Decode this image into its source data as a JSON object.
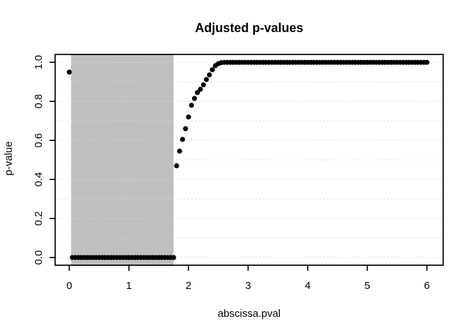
{
  "chart_data": {
    "type": "scatter",
    "title": "Adjusted p-values",
    "xlabel": "abscissa.pval",
    "ylabel": "p-value",
    "xlim": [
      -0.24,
      6.24
    ],
    "ylim": [
      -0.04,
      1.04
    ],
    "x_ticks": [
      0,
      1,
      2,
      3,
      4,
      5,
      6
    ],
    "x_tick_labels": [
      "0",
      "1",
      "2",
      "3",
      "4",
      "5",
      "6"
    ],
    "y_ticks": [
      0,
      0.2,
      0.4,
      0.6,
      0.8,
      1
    ],
    "y_tick_labels": [
      "0.0",
      "0.2",
      "0.4",
      "0.6",
      "0.8",
      "1.0"
    ],
    "gridlines_y": [
      0,
      0.1,
      0.2,
      0.3,
      0.4,
      0.5,
      0.6,
      0.7,
      0.8,
      0.9,
      1.0
    ],
    "gridline_style": "dotted",
    "grid": "horizontal-only",
    "legend": "none",
    "background": "#ffffff",
    "gridline_color": "#d9d9d9",
    "axis_color": "#000000",
    "point_color": "#000000",
    "point_shape": "filled-circle",
    "shaded_region": {
      "x_from": 0.03,
      "x_to": 1.75,
      "color": "#bfbfbf",
      "spans_full_height": true
    },
    "points": [
      [
        0,
        0.95
      ],
      [
        0.05,
        0
      ],
      [
        0.1,
        0
      ],
      [
        0.15,
        0
      ],
      [
        0.2,
        0
      ],
      [
        0.25,
        0
      ],
      [
        0.3,
        0
      ],
      [
        0.35,
        0
      ],
      [
        0.4,
        0
      ],
      [
        0.45,
        0
      ],
      [
        0.5,
        0
      ],
      [
        0.55,
        0
      ],
      [
        0.6,
        0
      ],
      [
        0.65,
        0
      ],
      [
        0.7,
        0
      ],
      [
        0.75,
        0
      ],
      [
        0.8,
        0
      ],
      [
        0.85,
        0
      ],
      [
        0.9,
        0
      ],
      [
        0.95,
        0
      ],
      [
        1,
        0
      ],
      [
        1.05,
        0
      ],
      [
        1.1,
        0
      ],
      [
        1.15,
        0
      ],
      [
        1.2,
        0
      ],
      [
        1.25,
        0
      ],
      [
        1.3,
        0
      ],
      [
        1.35,
        0
      ],
      [
        1.4,
        0
      ],
      [
        1.45,
        0
      ],
      [
        1.5,
        0
      ],
      [
        1.55,
        0
      ],
      [
        1.6,
        0
      ],
      [
        1.65,
        0
      ],
      [
        1.7,
        0
      ],
      [
        1.75,
        0
      ],
      [
        1.8,
        0.47
      ],
      [
        1.85,
        0.545
      ],
      [
        1.9,
        0.605
      ],
      [
        1.95,
        0.66
      ],
      [
        2,
        0.72
      ],
      [
        2.05,
        0.78
      ],
      [
        2.1,
        0.815
      ],
      [
        2.15,
        0.845
      ],
      [
        2.2,
        0.862
      ],
      [
        2.25,
        0.885
      ],
      [
        2.3,
        0.912
      ],
      [
        2.35,
        0.936
      ],
      [
        2.4,
        0.962
      ],
      [
        2.45,
        0.983
      ],
      [
        2.5,
        0.993
      ],
      [
        2.55,
        0.998
      ],
      [
        2.6,
        1
      ],
      [
        2.65,
        1
      ],
      [
        2.7,
        1
      ],
      [
        2.75,
        1
      ],
      [
        2.8,
        1
      ],
      [
        2.85,
        1
      ],
      [
        2.9,
        1
      ],
      [
        2.95,
        1
      ],
      [
        3,
        1
      ],
      [
        3.05,
        1
      ],
      [
        3.1,
        1
      ],
      [
        3.15,
        1
      ],
      [
        3.2,
        1
      ],
      [
        3.25,
        1
      ],
      [
        3.3,
        1
      ],
      [
        3.35,
        1
      ],
      [
        3.4,
        1
      ],
      [
        3.45,
        1
      ],
      [
        3.5,
        1
      ],
      [
        3.55,
        1
      ],
      [
        3.6,
        1
      ],
      [
        3.65,
        1
      ],
      [
        3.7,
        1
      ],
      [
        3.75,
        1
      ],
      [
        3.8,
        1
      ],
      [
        3.85,
        1
      ],
      [
        3.9,
        1
      ],
      [
        3.95,
        1
      ],
      [
        4,
        1
      ],
      [
        4.05,
        1
      ],
      [
        4.1,
        1
      ],
      [
        4.15,
        1
      ],
      [
        4.2,
        1
      ],
      [
        4.25,
        1
      ],
      [
        4.3,
        1
      ],
      [
        4.35,
        1
      ],
      [
        4.4,
        1
      ],
      [
        4.45,
        1
      ],
      [
        4.5,
        1
      ],
      [
        4.55,
        1
      ],
      [
        4.6,
        1
      ],
      [
        4.65,
        1
      ],
      [
        4.7,
        1
      ],
      [
        4.75,
        1
      ],
      [
        4.8,
        1
      ],
      [
        4.85,
        1
      ],
      [
        4.9,
        1
      ],
      [
        4.95,
        1
      ],
      [
        5,
        1
      ],
      [
        5.05,
        1
      ],
      [
        5.1,
        1
      ],
      [
        5.15,
        1
      ],
      [
        5.2,
        1
      ],
      [
        5.25,
        1
      ],
      [
        5.3,
        1
      ],
      [
        5.35,
        1
      ],
      [
        5.4,
        1
      ],
      [
        5.45,
        1
      ],
      [
        5.5,
        1
      ],
      [
        5.55,
        1
      ],
      [
        5.6,
        1
      ],
      [
        5.65,
        1
      ],
      [
        5.7,
        1
      ],
      [
        5.75,
        1
      ],
      [
        5.8,
        1
      ],
      [
        5.85,
        1
      ],
      [
        5.9,
        1
      ],
      [
        5.95,
        1
      ],
      [
        6,
        1
      ]
    ]
  }
}
